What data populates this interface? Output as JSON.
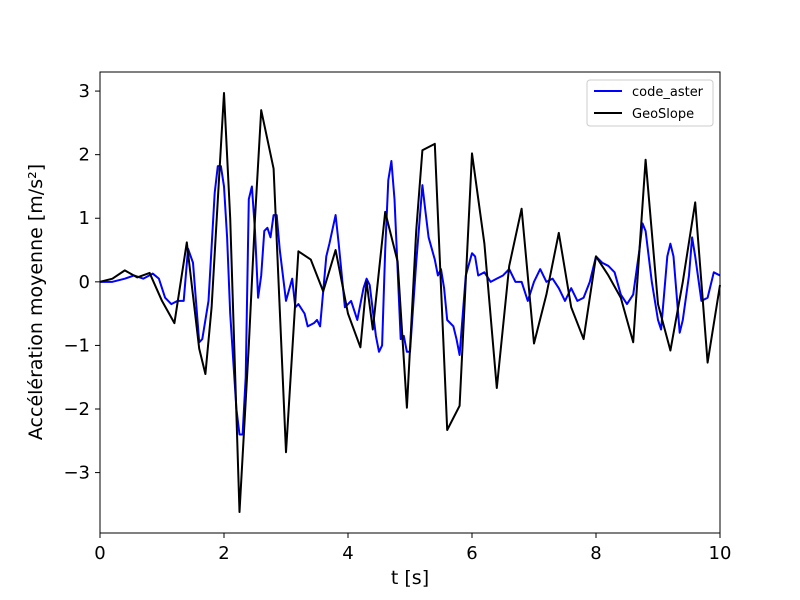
{
  "chart_data": {
    "type": "line",
    "xlabel": "t [s]",
    "ylabel": "Accélération moyenne [m/s²]",
    "xlim": [
      0,
      10
    ],
    "ylim": [
      -3.95,
      3.3
    ],
    "xticks": [
      0,
      2,
      4,
      6,
      8,
      10
    ],
    "yticks": [
      -3,
      -2,
      -1,
      0,
      1,
      2,
      3
    ],
    "xtick_labels": [
      "0",
      "2",
      "4",
      "6",
      "8",
      "10"
    ],
    "ytick_labels": [
      "−3",
      "−2",
      "−1",
      "0",
      "1",
      "2",
      "3"
    ],
    "grid": false,
    "legend_position": "top-right",
    "series": [
      {
        "name": "code_aster",
        "color": "#0000ff",
        "points": [
          [
            0.0,
            0.0
          ],
          [
            0.2,
            0.0
          ],
          [
            0.4,
            0.05
          ],
          [
            0.55,
            0.1
          ],
          [
            0.7,
            0.05
          ],
          [
            0.85,
            0.13
          ],
          [
            0.95,
            0.05
          ],
          [
            1.05,
            -0.25
          ],
          [
            1.15,
            -0.35
          ],
          [
            1.25,
            -0.3
          ],
          [
            1.35,
            -0.3
          ],
          [
            1.42,
            0.52
          ],
          [
            1.5,
            0.3
          ],
          [
            1.6,
            -0.95
          ],
          [
            1.65,
            -0.9
          ],
          [
            1.75,
            -0.3
          ],
          [
            1.85,
            1.4
          ],
          [
            1.9,
            1.82
          ],
          [
            1.95,
            1.82
          ],
          [
            2.0,
            1.5
          ],
          [
            2.05,
            0.7
          ],
          [
            2.1,
            -0.5
          ],
          [
            2.2,
            -2.0
          ],
          [
            2.25,
            -2.4
          ],
          [
            2.3,
            -2.4
          ],
          [
            2.35,
            -1.5
          ],
          [
            2.4,
            1.3
          ],
          [
            2.45,
            1.5
          ],
          [
            2.5,
            0.8
          ],
          [
            2.55,
            -0.25
          ],
          [
            2.6,
            0.1
          ],
          [
            2.65,
            0.8
          ],
          [
            2.7,
            0.85
          ],
          [
            2.75,
            0.7
          ],
          [
            2.8,
            1.05
          ],
          [
            2.85,
            1.05
          ],
          [
            2.9,
            0.5
          ],
          [
            3.0,
            -0.3
          ],
          [
            3.1,
            0.05
          ],
          [
            3.15,
            -0.4
          ],
          [
            3.2,
            -0.35
          ],
          [
            3.3,
            -0.5
          ],
          [
            3.35,
            -0.7
          ],
          [
            3.45,
            -0.65
          ],
          [
            3.5,
            -0.6
          ],
          [
            3.55,
            -0.7
          ],
          [
            3.65,
            0.4
          ],
          [
            3.7,
            0.6
          ],
          [
            3.8,
            1.05
          ],
          [
            3.85,
            0.6
          ],
          [
            3.95,
            -0.4
          ],
          [
            4.05,
            -0.3
          ],
          [
            4.15,
            -0.6
          ],
          [
            4.25,
            -0.1
          ],
          [
            4.3,
            0.05
          ],
          [
            4.35,
            -0.05
          ],
          [
            4.45,
            -0.85
          ],
          [
            4.5,
            -1.1
          ],
          [
            4.55,
            -1.0
          ],
          [
            4.6,
            0.5
          ],
          [
            4.65,
            1.6
          ],
          [
            4.7,
            1.9
          ],
          [
            4.75,
            1.3
          ],
          [
            4.85,
            -0.9
          ],
          [
            4.9,
            -0.85
          ],
          [
            4.95,
            -1.1
          ],
          [
            5.0,
            -1.1
          ],
          [
            5.1,
            0.3
          ],
          [
            5.2,
            1.52
          ],
          [
            5.25,
            1.1
          ],
          [
            5.3,
            0.7
          ],
          [
            5.4,
            0.35
          ],
          [
            5.45,
            0.1
          ],
          [
            5.5,
            0.2
          ],
          [
            5.55,
            -0.1
          ],
          [
            5.6,
            -0.6
          ],
          [
            5.7,
            -0.7
          ],
          [
            5.75,
            -0.9
          ],
          [
            5.8,
            -1.15
          ],
          [
            5.9,
            0.1
          ],
          [
            6.0,
            0.45
          ],
          [
            6.05,
            0.4
          ],
          [
            6.1,
            0.1
          ],
          [
            6.2,
            0.15
          ],
          [
            6.3,
            0.0
          ],
          [
            6.4,
            0.05
          ],
          [
            6.5,
            0.1
          ],
          [
            6.6,
            0.2
          ],
          [
            6.7,
            0.0
          ],
          [
            6.8,
            0.0
          ],
          [
            6.9,
            -0.3
          ],
          [
            7.0,
            0.0
          ],
          [
            7.1,
            0.2
          ],
          [
            7.2,
            0.0
          ],
          [
            7.3,
            0.05
          ],
          [
            7.4,
            -0.1
          ],
          [
            7.5,
            -0.3
          ],
          [
            7.6,
            -0.1
          ],
          [
            7.7,
            -0.3
          ],
          [
            7.8,
            -0.25
          ],
          [
            7.9,
            0.0
          ],
          [
            8.0,
            0.4
          ],
          [
            8.1,
            0.3
          ],
          [
            8.2,
            0.25
          ],
          [
            8.3,
            0.15
          ],
          [
            8.4,
            -0.2
          ],
          [
            8.5,
            -0.35
          ],
          [
            8.6,
            -0.2
          ],
          [
            8.7,
            0.5
          ],
          [
            8.75,
            0.92
          ],
          [
            8.8,
            0.8
          ],
          [
            8.9,
            0.0
          ],
          [
            9.0,
            -0.6
          ],
          [
            9.05,
            -0.75
          ],
          [
            9.15,
            0.4
          ],
          [
            9.2,
            0.6
          ],
          [
            9.25,
            0.4
          ],
          [
            9.35,
            -0.8
          ],
          [
            9.4,
            -0.6
          ],
          [
            9.5,
            0.1
          ],
          [
            9.55,
            0.7
          ],
          [
            9.6,
            0.4
          ],
          [
            9.7,
            -0.3
          ],
          [
            9.8,
            -0.25
          ],
          [
            9.9,
            0.15
          ],
          [
            10.0,
            0.1
          ]
        ]
      },
      {
        "name": "GeoSlope",
        "color": "#000000",
        "points": [
          [
            0.0,
            0.0
          ],
          [
            0.2,
            0.05
          ],
          [
            0.4,
            0.18
          ],
          [
            0.6,
            0.07
          ],
          [
            0.8,
            0.14
          ],
          [
            1.0,
            -0.3
          ],
          [
            1.2,
            -0.65
          ],
          [
            1.4,
            0.62
          ],
          [
            1.6,
            -1.05
          ],
          [
            1.7,
            -1.45
          ],
          [
            1.8,
            -0.4
          ],
          [
            2.0,
            2.97
          ],
          [
            2.1,
            1.0
          ],
          [
            2.25,
            -3.62
          ],
          [
            2.4,
            -1.0
          ],
          [
            2.5,
            1.0
          ],
          [
            2.6,
            2.7
          ],
          [
            2.8,
            1.78
          ],
          [
            3.0,
            -2.68
          ],
          [
            3.2,
            0.48
          ],
          [
            3.4,
            0.35
          ],
          [
            3.6,
            -0.15
          ],
          [
            3.8,
            0.5
          ],
          [
            4.0,
            -0.5
          ],
          [
            4.2,
            -1.03
          ],
          [
            4.3,
            0.0
          ],
          [
            4.4,
            -0.75
          ],
          [
            4.6,
            1.1
          ],
          [
            4.8,
            0.32
          ],
          [
            4.95,
            -1.98
          ],
          [
            5.1,
            0.8
          ],
          [
            5.2,
            2.07
          ],
          [
            5.4,
            2.17
          ],
          [
            5.6,
            -2.33
          ],
          [
            5.8,
            -1.95
          ],
          [
            6.0,
            2.02
          ],
          [
            6.2,
            0.6
          ],
          [
            6.4,
            -1.67
          ],
          [
            6.6,
            0.25
          ],
          [
            6.8,
            1.15
          ],
          [
            7.0,
            -0.97
          ],
          [
            7.2,
            -0.2
          ],
          [
            7.4,
            0.77
          ],
          [
            7.6,
            -0.4
          ],
          [
            7.8,
            -0.9
          ],
          [
            8.0,
            0.4
          ],
          [
            8.2,
            0.1
          ],
          [
            8.4,
            -0.25
          ],
          [
            8.6,
            -0.95
          ],
          [
            8.8,
            1.92
          ],
          [
            9.0,
            -0.35
          ],
          [
            9.2,
            -1.08
          ],
          [
            9.4,
            0.0
          ],
          [
            9.6,
            1.25
          ],
          [
            9.8,
            -1.27
          ],
          [
            10.0,
            -0.05
          ]
        ]
      }
    ]
  }
}
